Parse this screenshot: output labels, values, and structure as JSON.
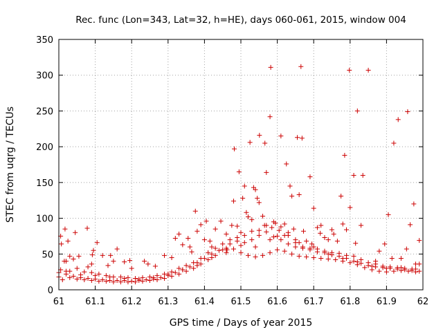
{
  "chart_data": {
    "type": "scatter",
    "title": "Rec. func (Lon=343, Lat=32, h=HE), days 060-061, 2015, window 004",
    "xlabel": "GPS time / Days of year 2015",
    "ylabel": "STEC from uqrg / TECUs",
    "xlim": [
      61,
      62
    ],
    "ylim": [
      0,
      350
    ],
    "xticks": [
      "61",
      "61.1",
      "61.2",
      "61.3",
      "61.4",
      "61.5",
      "61.6",
      "61.7",
      "61.8",
      "61.9",
      "62"
    ],
    "yticks": [
      "0",
      "50",
      "100",
      "150",
      "200",
      "250",
      "300",
      "350"
    ],
    "grid": true,
    "legend": "none",
    "marker": "+",
    "marker_color": "#cc0000",
    "grid_color": "#a0a0a0",
    "series": [
      {
        "points": [
          [
            61.005,
            75
          ],
          [
            61.007,
            64
          ],
          [
            61.017,
            85
          ],
          [
            61.02,
            40
          ],
          [
            61.025,
            68
          ],
          [
            61.03,
            47
          ],
          [
            61.04,
            43
          ],
          [
            61.045,
            80
          ],
          [
            61.055,
            47
          ],
          [
            61.078,
            86
          ],
          [
            61.08,
            32
          ],
          [
            61.09,
            36
          ],
          [
            61.092,
            49
          ],
          [
            61.095,
            55
          ],
          [
            61.105,
            66
          ],
          [
            61.12,
            48
          ],
          [
            61.135,
            34
          ],
          [
            61.142,
            48
          ],
          [
            61.15,
            40
          ],
          [
            61.16,
            57
          ],
          [
            61.18,
            39
          ],
          [
            61.195,
            41
          ],
          [
            61.2,
            30
          ],
          [
            61.235,
            40
          ],
          [
            61.245,
            36
          ],
          [
            61.265,
            33
          ],
          [
            61.29,
            48
          ],
          [
            61.31,
            45
          ],
          [
            61.32,
            72
          ],
          [
            61.33,
            78
          ],
          [
            61.34,
            63
          ],
          [
            61.355,
            72
          ],
          [
            61.36,
            60
          ],
          [
            61.365,
            53
          ],
          [
            61.375,
            110
          ],
          [
            61.38,
            82
          ],
          [
            61.39,
            91
          ],
          [
            61.4,
            70
          ],
          [
            61.405,
            96
          ],
          [
            61.415,
            68
          ],
          [
            61.42,
            60
          ],
          [
            61.43,
            85
          ],
          [
            61.445,
            96
          ],
          [
            61.46,
            78
          ],
          [
            61.462,
            56
          ],
          [
            61.475,
            90
          ],
          [
            61.48,
            124
          ],
          [
            61.482,
            197
          ],
          [
            61.49,
            89
          ],
          [
            61.495,
            165
          ],
          [
            61.5,
            80
          ],
          [
            61.505,
            128
          ],
          [
            61.51,
            145
          ],
          [
            61.515,
            108
          ],
          [
            61.52,
            102
          ],
          [
            61.525,
            206
          ],
          [
            61.53,
            98
          ],
          [
            61.535,
            143
          ],
          [
            61.54,
            140
          ],
          [
            61.545,
            128
          ],
          [
            61.55,
            122
          ],
          [
            61.551,
            216
          ],
          [
            61.56,
            103
          ],
          [
            61.565,
            90
          ],
          [
            61.566,
            205
          ],
          [
            61.57,
            164
          ],
          [
            61.58,
            242
          ],
          [
            61.582,
            311
          ],
          [
            61.585,
            87
          ],
          [
            61.595,
            93
          ],
          [
            61.6,
            75
          ],
          [
            61.605,
            83
          ],
          [
            61.61,
            215
          ],
          [
            61.62,
            92
          ],
          [
            61.625,
            176
          ],
          [
            61.63,
            76
          ],
          [
            61.635,
            145
          ],
          [
            61.64,
            131
          ],
          [
            61.645,
            85
          ],
          [
            61.65,
            70
          ],
          [
            61.655,
            213
          ],
          [
            61.66,
            133
          ],
          [
            61.665,
            312
          ],
          [
            61.668,
            212
          ],
          [
            61.672,
            82
          ],
          [
            61.68,
            68
          ],
          [
            61.69,
            158
          ],
          [
            61.695,
            64
          ],
          [
            61.7,
            114
          ],
          [
            61.71,
            87
          ],
          [
            61.718,
            79
          ],
          [
            61.72,
            90
          ],
          [
            61.73,
            73
          ],
          [
            61.74,
            70
          ],
          [
            61.75,
            84
          ],
          [
            61.755,
            78
          ],
          [
            61.765,
            68
          ],
          [
            61.775,
            131
          ],
          [
            61.78,
            92
          ],
          [
            61.785,
            188
          ],
          [
            61.79,
            84
          ],
          [
            61.798,
            307
          ],
          [
            61.8,
            115
          ],
          [
            61.81,
            160
          ],
          [
            61.815,
            65
          ],
          [
            61.82,
            250
          ],
          [
            61.83,
            90
          ],
          [
            61.835,
            160
          ],
          [
            61.85,
            307
          ],
          [
            61.87,
            40
          ],
          [
            61.88,
            54
          ],
          [
            61.895,
            64
          ],
          [
            61.905,
            105
          ],
          [
            61.915,
            44
          ],
          [
            61.92,
            205
          ],
          [
            61.932,
            238
          ],
          [
            61.94,
            44
          ],
          [
            61.955,
            57
          ],
          [
            61.958,
            249
          ],
          [
            61.965,
            91
          ],
          [
            61.975,
            120
          ],
          [
            61.98,
            36
          ],
          [
            61.99,
            69
          ],
          [
            61.99,
            36
          ],
          [
            61.005,
            28
          ],
          [
            61.015,
            40
          ],
          [
            61.03,
            26
          ],
          [
            61.05,
            30
          ],
          [
            61.07,
            25
          ],
          [
            61.09,
            24
          ],
          [
            61.11,
            22
          ],
          [
            61.13,
            20
          ],
          [
            61.15,
            18
          ],
          [
            61.17,
            18
          ],
          [
            61.19,
            17
          ],
          [
            61.21,
            16
          ],
          [
            61.23,
            17
          ],
          [
            61.25,
            18
          ],
          [
            61.27,
            20
          ],
          [
            61.29,
            22
          ],
          [
            61.31,
            25
          ],
          [
            61.33,
            30
          ],
          [
            61.35,
            34
          ],
          [
            61.37,
            38
          ],
          [
            61.39,
            44
          ],
          [
            61.41,
            52
          ],
          [
            61.43,
            58
          ],
          [
            61.45,
            64
          ],
          [
            61.47,
            70
          ],
          [
            61.49,
            73
          ],
          [
            61.51,
            76
          ],
          [
            61.53,
            82
          ],
          [
            61.55,
            83
          ],
          [
            61.57,
            81
          ],
          [
            61.59,
            74
          ],
          [
            61.61,
            70
          ],
          [
            61.63,
            64
          ],
          [
            61.65,
            60
          ],
          [
            61.67,
            58
          ],
          [
            61.69,
            56
          ],
          [
            61.71,
            53
          ],
          [
            61.73,
            52
          ],
          [
            61.75,
            49
          ],
          [
            61.77,
            47
          ],
          [
            61.79,
            44
          ],
          [
            61.81,
            40
          ],
          [
            61.83,
            37
          ],
          [
            61.85,
            34
          ],
          [
            61.87,
            32
          ],
          [
            61.89,
            31
          ],
          [
            61.91,
            30
          ],
          [
            61.93,
            29
          ],
          [
            61.95,
            28
          ],
          [
            61.97,
            27
          ],
          [
            61.99,
            26
          ],
          [
            61.0,
            18
          ],
          [
            61.02,
            22
          ],
          [
            61.04,
            19
          ],
          [
            61.06,
            17
          ],
          [
            61.08,
            16
          ],
          [
            61.1,
            15
          ],
          [
            61.12,
            14
          ],
          [
            61.14,
            13
          ],
          [
            61.16,
            13
          ],
          [
            61.18,
            13
          ],
          [
            61.2,
            12
          ],
          [
            61.22,
            13
          ],
          [
            61.24,
            14
          ],
          [
            61.26,
            15
          ],
          [
            61.28,
            17
          ],
          [
            61.3,
            20
          ],
          [
            61.32,
            24
          ],
          [
            61.34,
            28
          ],
          [
            61.36,
            32
          ],
          [
            61.38,
            38
          ],
          [
            61.4,
            44
          ],
          [
            61.42,
            50
          ],
          [
            61.44,
            55
          ],
          [
            61.46,
            58
          ],
          [
            61.48,
            57
          ],
          [
            61.5,
            52
          ],
          [
            61.52,
            48
          ],
          [
            61.54,
            46
          ],
          [
            61.56,
            48
          ],
          [
            61.58,
            52
          ],
          [
            61.6,
            56
          ],
          [
            61.62,
            54
          ],
          [
            61.64,
            50
          ],
          [
            61.66,
            47
          ],
          [
            61.68,
            46
          ],
          [
            61.7,
            45
          ],
          [
            61.72,
            44
          ],
          [
            61.74,
            43
          ],
          [
            61.76,
            42
          ],
          [
            61.78,
            40
          ],
          [
            61.8,
            38
          ],
          [
            61.82,
            35
          ],
          [
            61.84,
            31
          ],
          [
            61.86,
            28
          ],
          [
            61.88,
            26
          ],
          [
            61.9,
            25
          ],
          [
            61.92,
            26
          ],
          [
            61.94,
            27
          ],
          [
            61.96,
            26
          ],
          [
            61.98,
            25
          ],
          [
            61.01,
            14
          ],
          [
            61.03,
            17
          ],
          [
            61.05,
            15
          ],
          [
            61.07,
            14
          ],
          [
            61.09,
            13
          ],
          [
            61.11,
            12
          ],
          [
            61.13,
            12
          ],
          [
            61.15,
            11
          ],
          [
            61.17,
            11
          ],
          [
            61.19,
            11
          ],
          [
            61.21,
            11
          ],
          [
            61.23,
            12
          ],
          [
            61.25,
            13
          ],
          [
            61.27,
            14
          ],
          [
            61.29,
            16
          ],
          [
            61.31,
            19
          ],
          [
            61.33,
            22
          ],
          [
            61.35,
            26
          ],
          [
            61.37,
            30
          ],
          [
            61.39,
            36
          ],
          [
            61.41,
            42
          ],
          [
            61.43,
            48
          ],
          [
            61.45,
            56
          ],
          [
            61.47,
            64
          ],
          [
            61.49,
            68
          ],
          [
            61.51,
            66
          ],
          [
            61.53,
            70
          ],
          [
            61.55,
            76
          ],
          [
            61.57,
            90
          ],
          [
            61.59,
            95
          ],
          [
            61.61,
            88
          ],
          [
            61.63,
            80
          ],
          [
            61.65,
            66
          ],
          [
            61.67,
            60
          ],
          [
            61.69,
            58
          ],
          [
            61.71,
            57
          ],
          [
            61.73,
            54
          ],
          [
            61.75,
            52
          ],
          [
            61.77,
            51
          ],
          [
            61.79,
            48
          ],
          [
            61.81,
            47
          ],
          [
            61.83,
            42
          ],
          [
            61.85,
            38
          ],
          [
            61.87,
            36
          ],
          [
            61.89,
            33
          ],
          [
            61.91,
            32
          ],
          [
            61.93,
            31
          ],
          [
            61.95,
            30
          ],
          [
            61.97,
            29
          ],
          [
            61.0,
            24
          ],
          [
            61.02,
            26
          ],
          [
            61.06,
            21
          ],
          [
            61.1,
            20
          ],
          [
            61.14,
            18
          ],
          [
            61.18,
            16
          ],
          [
            61.22,
            15
          ],
          [
            61.26,
            17
          ],
          [
            61.3,
            22
          ],
          [
            61.34,
            28
          ],
          [
            61.38,
            34
          ],
          [
            61.42,
            45
          ],
          [
            61.46,
            52
          ],
          [
            61.5,
            62
          ],
          [
            61.54,
            60
          ],
          [
            61.58,
            70
          ],
          [
            61.62,
            76
          ],
          [
            61.66,
            66
          ],
          [
            61.7,
            60
          ],
          [
            61.74,
            50
          ],
          [
            61.78,
            44
          ],
          [
            61.82,
            39
          ],
          [
            61.86,
            33
          ],
          [
            61.9,
            30
          ],
          [
            61.94,
            31
          ],
          [
            61.98,
            29
          ]
        ]
      }
    ]
  }
}
